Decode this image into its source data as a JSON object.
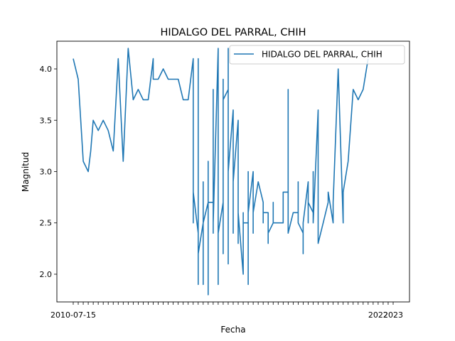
{
  "chart_data": {
    "type": "line",
    "title": "HIDALGO DEL PARRAL, CHIH",
    "xlabel": "Fecha",
    "ylabel": "Magnitud",
    "ylim": [
      1.73,
      4.27
    ],
    "yticks": [
      "2.0",
      "2.5",
      "3.0",
      "3.5",
      "4.0"
    ],
    "ytick_values": [
      2.0,
      2.5,
      3.0,
      3.5,
      4.0
    ],
    "xtick_labels": [
      "2010-07-15",
      "2022",
      "2023"
    ],
    "x_count": 65,
    "legend": {
      "position": "top-right"
    },
    "grid": false,
    "series": [
      {
        "name": "HIDALGO DEL PARRAL, CHIH",
        "color": "#1f77b4",
        "points": [
          [
            0,
            4.1
          ],
          [
            1,
            3.9
          ],
          [
            2,
            3.1
          ],
          [
            3,
            3.0
          ],
          [
            3.5,
            3.2
          ],
          [
            4,
            3.5
          ],
          [
            5,
            3.4
          ],
          [
            6,
            3.5
          ],
          [
            7,
            3.4
          ],
          [
            8,
            3.2
          ],
          [
            9,
            4.1
          ],
          [
            10,
            3.1
          ],
          [
            11,
            4.2
          ],
          [
            12,
            3.7
          ],
          [
            13,
            3.8
          ],
          [
            14,
            3.7
          ],
          [
            15,
            3.7
          ],
          [
            16,
            4.1
          ],
          [
            16,
            3.9
          ],
          [
            17,
            3.9
          ],
          [
            18,
            4.0
          ],
          [
            19,
            3.9
          ],
          [
            20,
            3.9
          ],
          [
            21,
            3.9
          ],
          [
            22,
            3.7
          ],
          [
            23,
            3.7
          ],
          [
            24,
            4.1
          ],
          [
            24,
            2.5
          ],
          [
            24,
            2.8
          ],
          [
            25,
            2.4
          ],
          [
            25,
            4.1
          ],
          [
            25,
            1.9
          ],
          [
            25,
            2.2
          ],
          [
            26,
            2.5
          ],
          [
            26,
            2.9
          ],
          [
            26,
            1.9
          ],
          [
            26,
            2.5
          ],
          [
            27,
            2.7
          ],
          [
            27,
            3.1
          ],
          [
            27,
            1.8
          ],
          [
            27,
            2.7
          ],
          [
            28,
            2.7
          ],
          [
            28,
            3.8
          ],
          [
            28,
            2.4
          ],
          [
            28,
            2.5
          ],
          [
            29,
            4.2
          ],
          [
            29,
            1.9
          ],
          [
            29,
            2.4
          ],
          [
            30,
            2.7
          ],
          [
            30,
            3.9
          ],
          [
            30,
            2.2
          ],
          [
            30,
            3.7
          ],
          [
            31,
            3.8
          ],
          [
            31,
            2.1
          ],
          [
            31,
            4.2
          ],
          [
            31,
            3.0
          ],
          [
            32,
            3.6
          ],
          [
            32,
            2.4
          ],
          [
            32,
            2.9
          ],
          [
            33,
            3.5
          ],
          [
            33,
            2.3
          ],
          [
            33,
            2.6
          ],
          [
            34,
            2.0
          ],
          [
            34,
            2.6
          ],
          [
            34,
            2.5
          ],
          [
            35,
            2.5
          ],
          [
            35,
            3.0
          ],
          [
            35,
            1.9
          ],
          [
            35,
            2.6
          ],
          [
            36,
            3.0
          ],
          [
            36,
            2.4
          ],
          [
            36,
            2.6
          ],
          [
            37,
            2.9
          ],
          [
            38,
            2.7
          ],
          [
            38,
            2.5
          ],
          [
            38,
            2.6
          ],
          [
            39,
            2.6
          ],
          [
            39,
            2.3
          ],
          [
            39,
            2.4
          ],
          [
            40,
            2.5
          ],
          [
            40,
            2.7
          ],
          [
            40,
            2.5
          ],
          [
            41,
            2.5
          ],
          [
            42,
            2.5
          ],
          [
            42,
            2.8
          ],
          [
            43,
            2.8
          ],
          [
            43,
            3.8
          ],
          [
            43,
            2.4
          ],
          [
            44,
            2.6
          ],
          [
            45,
            2.6
          ],
          [
            45,
            2.9
          ],
          [
            45,
            2.5
          ],
          [
            46,
            2.4
          ],
          [
            46,
            2.2
          ],
          [
            46,
            2.5
          ],
          [
            47,
            2.9
          ],
          [
            47,
            2.5
          ],
          [
            47,
            2.7
          ],
          [
            48,
            2.6
          ],
          [
            48,
            3.0
          ],
          [
            48,
            2.5
          ],
          [
            49,
            3.6
          ],
          [
            49,
            2.3
          ],
          [
            50,
            2.5
          ],
          [
            51,
            2.7
          ],
          [
            51,
            2.8
          ],
          [
            52,
            2.5
          ],
          [
            52,
            2.7
          ],
          [
            53,
            4.0
          ],
          [
            54,
            2.5
          ],
          [
            54,
            2.8
          ],
          [
            55,
            3.1
          ],
          [
            56,
            3.8
          ],
          [
            57,
            3.7
          ],
          [
            58,
            3.8
          ],
          [
            59,
            4.1
          ]
        ]
      }
    ]
  }
}
